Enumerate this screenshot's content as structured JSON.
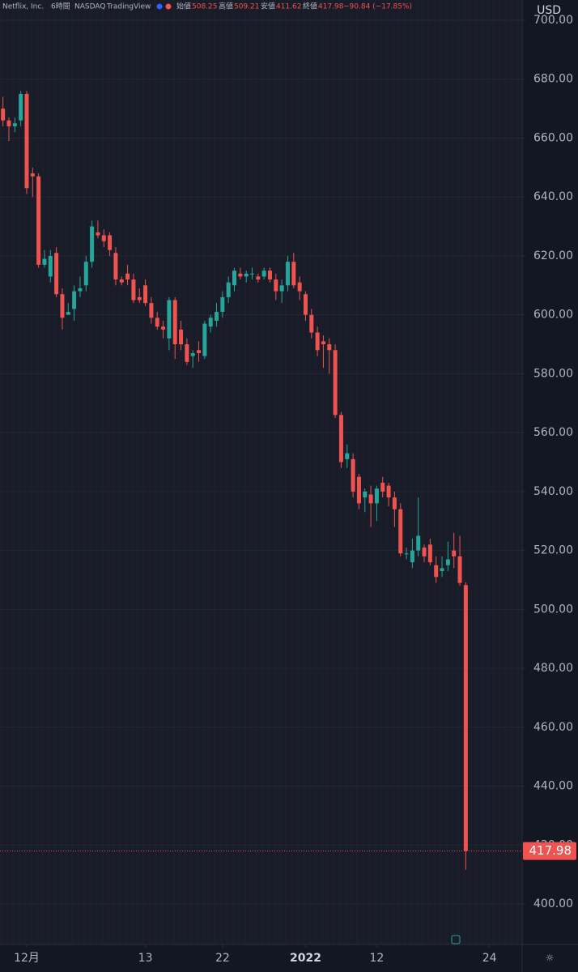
{
  "chart_data": {
    "type": "candlestick",
    "title": "Netflix, Inc.",
    "interval": "6時間",
    "exchange": "NASDAQ",
    "source": "TradingView",
    "ohlc_labels": [
      "始値",
      "高値",
      "安値",
      "終値"
    ],
    "change": "−90.84 (−17.85%)",
    "currency": "USD",
    "up_color": "#26a69a",
    "down_color": "#ef5350",
    "grid": true,
    "ylim": [
      400,
      700
    ],
    "yticks": [
      {
        "value": 400,
        "label": "400.00"
      },
      {
        "value": 420,
        "label": "420.00"
      },
      {
        "value": 440,
        "label": "440.00"
      },
      {
        "value": 460,
        "label": "460.00"
      },
      {
        "value": 480,
        "label": "480.00"
      },
      {
        "value": 500,
        "label": "500.00"
      },
      {
        "value": 520,
        "label": "520.00"
      },
      {
        "value": 540,
        "label": "540.00"
      },
      {
        "value": 560,
        "label": "560.00"
      },
      {
        "value": 580,
        "label": "580.00"
      },
      {
        "value": 600,
        "label": "600.00"
      },
      {
        "value": 620,
        "label": "620.00"
      },
      {
        "value": 640,
        "label": "640.00"
      },
      {
        "value": 660,
        "label": "660.00"
      },
      {
        "value": 680,
        "label": "680.00"
      },
      {
        "value": 700,
        "label": "700.00"
      }
    ],
    "categories": [
      null,
      null,
      null,
      null,
      "12月",
      null,
      null,
      null,
      null,
      null,
      null,
      null,
      null,
      null,
      null,
      null,
      null,
      null,
      null,
      null,
      null,
      null,
      null,
      null,
      "13",
      null,
      null,
      null,
      null,
      null,
      null,
      null,
      null,
      null,
      null,
      null,
      null,
      "22",
      null,
      null,
      null,
      null,
      null,
      null,
      null,
      null,
      null,
      null,
      null,
      null,
      null,
      "2022",
      null,
      null,
      null,
      null,
      null,
      null,
      null,
      null,
      null,
      null,
      null,
      "12",
      null,
      null,
      null,
      null,
      null,
      null,
      null,
      null,
      null,
      null,
      null,
      null,
      null,
      null,
      null,
      null,
      null,
      null,
      "24",
      null,
      null,
      null,
      null,
      null
    ],
    "open": [
      670,
      666,
      664,
      666,
      675,
      648,
      647,
      617,
      613,
      621,
      607,
      600,
      602,
      608,
      610,
      618,
      628,
      627,
      627,
      621,
      612,
      614,
      612,
      606,
      610,
      604,
      599,
      596,
      592,
      605,
      595,
      590,
      586,
      588,
      586,
      596,
      598,
      601,
      606,
      610,
      614,
      613,
      614,
      613,
      613,
      615,
      612,
      608,
      610,
      618,
      611,
      607,
      600,
      594,
      591,
      590,
      588,
      566,
      551,
      551,
      545,
      538,
      539,
      536,
      543,
      542,
      538,
      534,
      519,
      516,
      520,
      521,
      522,
      515,
      513,
      515,
      520,
      518,
      508.25,
      null,
      null,
      null,
      null,
      null,
      null,
      null,
      null,
      null
    ],
    "high": [
      674,
      667,
      667,
      676,
      676,
      650,
      648,
      622,
      622,
      623,
      609,
      604,
      610,
      613,
      620,
      632,
      632,
      629,
      628,
      623,
      613,
      617,
      614,
      609,
      612,
      606,
      601,
      598,
      606,
      606,
      598,
      592,
      588,
      591,
      598,
      600,
      604,
      608,
      613,
      616,
      616,
      615,
      616,
      614,
      616,
      616,
      614,
      612,
      620,
      621,
      613,
      608,
      602,
      596,
      593,
      592,
      590,
      567,
      556,
      553,
      546,
      541,
      542,
      542,
      545,
      543,
      540,
      536,
      521,
      524,
      538,
      522,
      524,
      518,
      518,
      523,
      526,
      525,
      509.21,
      null,
      null,
      null,
      null,
      null,
      null,
      null,
      null,
      null
    ],
    "low": [
      664,
      659,
      662,
      664,
      641,
      640,
      616,
      616,
      611,
      606,
      595,
      600,
      598,
      606,
      608,
      616,
      626,
      623,
      620,
      610,
      610,
      610,
      604,
      604,
      603,
      597,
      595,
      592,
      588,
      585,
      588,
      583,
      582,
      584,
      585,
      594,
      596,
      599,
      604,
      608,
      612,
      611,
      612,
      611,
      612,
      611,
      605,
      604,
      608,
      609,
      605,
      598,
      592,
      586,
      582,
      580,
      565,
      548,
      548,
      538,
      534,
      533,
      528,
      530,
      538,
      535,
      528,
      518,
      517,
      514,
      518,
      516,
      515,
      509,
      511,
      513,
      514,
      508,
      411.62,
      null,
      null,
      null,
      null,
      null,
      null,
      null,
      null,
      null
    ],
    "close": [
      666,
      664,
      665,
      675,
      643,
      647,
      617,
      619,
      620,
      607,
      599,
      601,
      608,
      609,
      618,
      630,
      627,
      625,
      622,
      612,
      611,
      612,
      605,
      605,
      604,
      599,
      596,
      595,
      605,
      590,
      590,
      584,
      587,
      587,
      597,
      599,
      601,
      606,
      611,
      615,
      613,
      614,
      614,
      612,
      615,
      612,
      608,
      610,
      618,
      610,
      608,
      600,
      594,
      588,
      590,
      588,
      566,
      550,
      553,
      540,
      536,
      540,
      536,
      541,
      540,
      538,
      534,
      519,
      519,
      520,
      525,
      518,
      516,
      511,
      514,
      517,
      518,
      509,
      417.98,
      null,
      null,
      null,
      null,
      null,
      null,
      null,
      null,
      null
    ]
  }
}
